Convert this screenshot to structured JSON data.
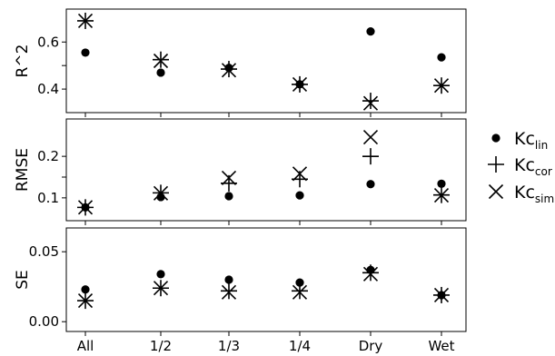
{
  "chart_data": {
    "type": "scatter",
    "categories": [
      "All",
      "1/2",
      "1/3",
      "1/4",
      "Dry",
      "Wet"
    ],
    "panels": [
      {
        "ylabel": "R^2",
        "ylim": [
          0.3,
          0.74
        ],
        "yticks": [
          0.4,
          0.5,
          0.6
        ],
        "ytick_labels": [
          "0.4",
          "",
          "0.6"
        ],
        "series": [
          {
            "key": "lin",
            "marker": "circle",
            "values": [
              0.555,
              0.47,
              0.49,
              0.42,
              0.645,
              0.535
            ]
          },
          {
            "key": "cor",
            "marker": "plus",
            "values": [
              0.69,
              0.525,
              0.485,
              0.42,
              0.35,
              0.415
            ]
          },
          {
            "key": "sim",
            "marker": "x",
            "values": [
              0.69,
              0.52,
              0.48,
              0.42,
              0.34,
              0.415
            ]
          }
        ]
      },
      {
        "ylabel": "RMSE",
        "ylim": [
          0.045,
          0.29
        ],
        "yticks": [
          0.1,
          0.15,
          0.2
        ],
        "ytick_labels": [
          "0.1",
          "",
          "0.2"
        ],
        "series": [
          {
            "key": "lin",
            "marker": "circle",
            "values": [
              0.077,
              0.102,
              0.104,
              0.106,
              0.133,
              0.134
            ]
          },
          {
            "key": "cor",
            "marker": "plus",
            "values": [
              0.077,
              0.112,
              0.135,
              0.145,
              0.2,
              0.107
            ]
          },
          {
            "key": "sim",
            "marker": "x",
            "values": [
              0.077,
              0.111,
              0.148,
              0.158,
              0.246,
              0.106
            ]
          }
        ]
      },
      {
        "ylabel": "SE",
        "ylim": [
          -0.007,
          0.067
        ],
        "yticks": [
          0.0,
          0.05
        ],
        "ytick_labels": [
          "0.00",
          "0.05"
        ],
        "series": [
          {
            "key": "lin",
            "marker": "circle",
            "values": [
              0.023,
              0.034,
              0.03,
              0.028,
              0.037,
              0.019
            ]
          },
          {
            "key": "cor",
            "marker": "plus",
            "values": [
              0.015,
              0.024,
              0.022,
              0.022,
              0.035,
              0.019
            ]
          },
          {
            "key": "sim",
            "marker": "x",
            "values": [
              0.015,
              0.024,
              0.021,
              0.021,
              0.034,
              0.019
            ]
          }
        ]
      }
    ],
    "legend": {
      "placement": "right",
      "entries": [
        {
          "key": "lin",
          "marker": "circle",
          "main": "Kc",
          "sub": "lin"
        },
        {
          "key": "cor",
          "marker": "plus",
          "main": "Kc",
          "sub": "cor"
        },
        {
          "key": "sim",
          "marker": "x",
          "main": "Kc",
          "sub": "sim"
        }
      ]
    },
    "marker_color": "#000000",
    "grid": false
  }
}
